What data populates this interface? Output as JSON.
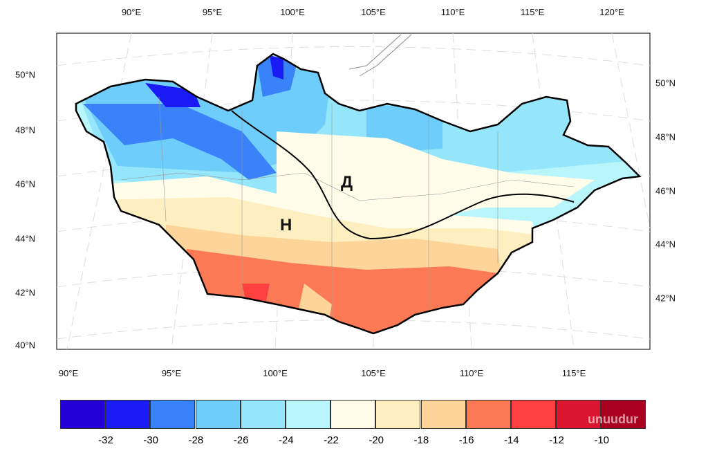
{
  "top_lon_labels": [
    "90°E",
    "95°E",
    "100°E",
    "105°E",
    "110°E",
    "115°E",
    "120°E"
  ],
  "bottom_lon_labels": [
    "90°E",
    "95°E",
    "100°E",
    "105°E",
    "110°E",
    "115°E"
  ],
  "left_lat_labels": [
    "50°N",
    "48°N",
    "46°N",
    "44°N",
    "42°N",
    "40°N"
  ],
  "right_lat_labels": [
    "50°N",
    "48°N",
    "46°N",
    "44°N",
    "42°N"
  ],
  "markers": {
    "high": "Д",
    "low": "Н"
  },
  "colorbar": {
    "colors": [
      "#2200d6",
      "#1a1af5",
      "#3a82fa",
      "#6fcdfb",
      "#96e6fb",
      "#b8f6fb",
      "#fffdea",
      "#fdefbf",
      "#fdd59a",
      "#fb7a55",
      "#fc4040",
      "#d9152f",
      "#a8001e"
    ],
    "labels": [
      "-32",
      "-30",
      "-28",
      "-26",
      "-24",
      "-22",
      "-20",
      "-18",
      "-16",
      "-14",
      "-12",
      "-10"
    ]
  },
  "watermark": "unuudur"
}
